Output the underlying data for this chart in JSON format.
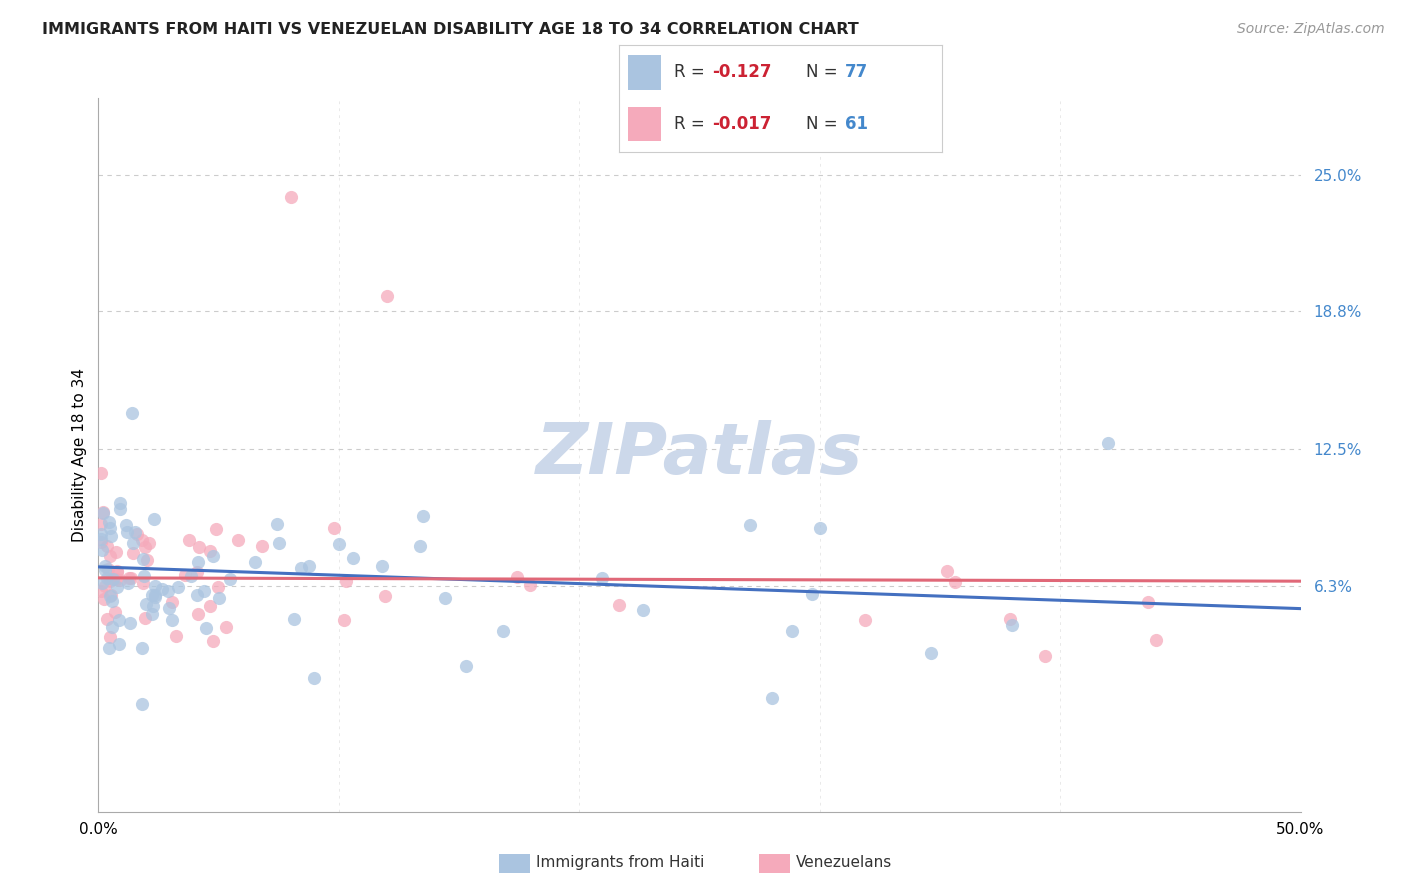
{
  "title": "IMMIGRANTS FROM HAITI VS VENEZUELAN DISABILITY AGE 18 TO 34 CORRELATION CHART",
  "source": "Source: ZipAtlas.com",
  "ylabel": "Disability Age 18 to 34",
  "ytick_labels": [
    "6.3%",
    "12.5%",
    "18.8%",
    "25.0%"
  ],
  "ytick_values": [
    0.063,
    0.125,
    0.188,
    0.25
  ],
  "xlim": [
    0.0,
    0.5
  ],
  "ylim": [
    -0.04,
    0.285
  ],
  "legend_haiti_r": "-0.127",
  "legend_haiti_n": "77",
  "legend_venezuela_r": "-0.017",
  "legend_venezuela_n": "61",
  "haiti_color": "#aac4e0",
  "venezuela_color": "#f5aabb",
  "haiti_line_color": "#4470c0",
  "venezuela_line_color": "#e06878",
  "r_color": "#cc2233",
  "n_color": "#4488cc",
  "watermark_color": "#ccd8ea",
  "grid_color": "#cccccc",
  "ytick_color": "#4488cc",
  "title_fontsize": 11.5,
  "source_fontsize": 10,
  "axis_fontsize": 11,
  "legend_fontsize": 12,
  "scatter_size": 90,
  "scatter_alpha": 0.75
}
